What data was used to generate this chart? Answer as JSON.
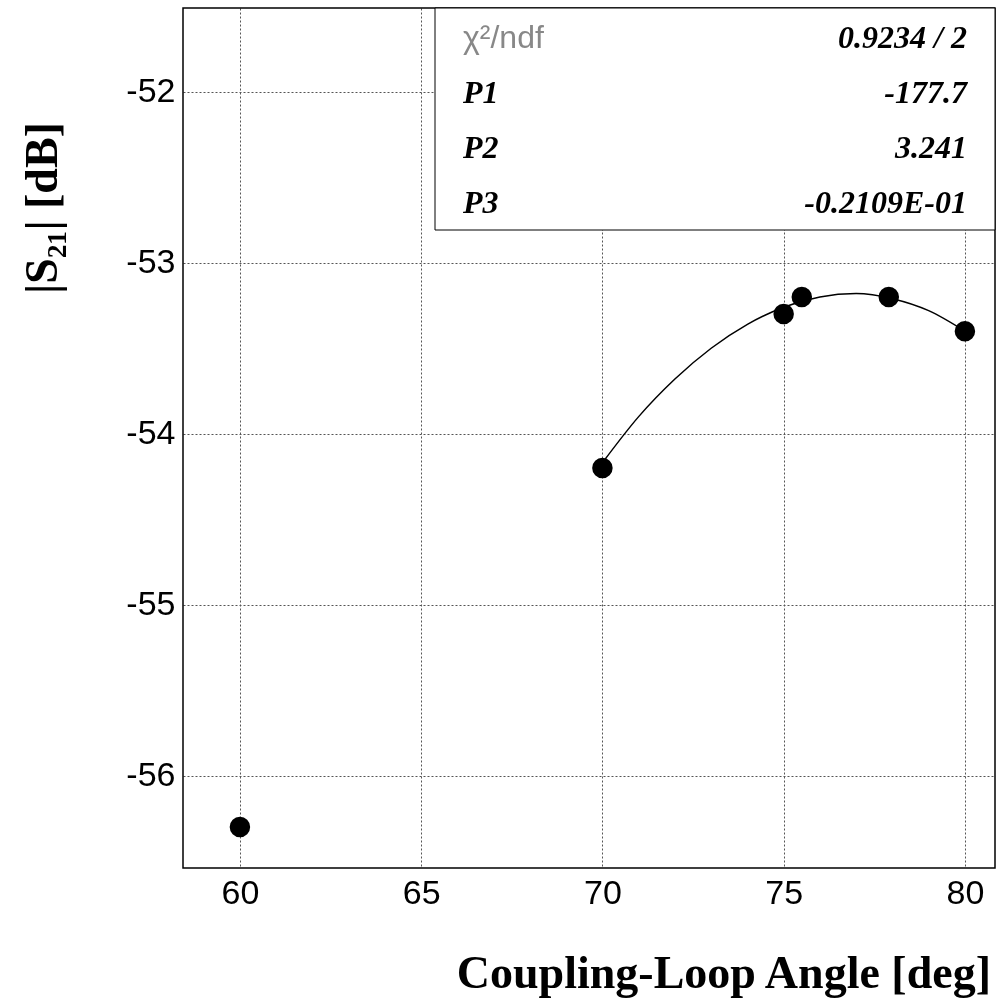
{
  "chart_data": {
    "type": "scatter",
    "xlabel": "Coupling-Loop Angle   [deg]",
    "ylabel": "|S₂₁|   [dB]",
    "xlim": [
      58.43,
      80.83
    ],
    "ylim": [
      -56.54,
      -51.51
    ],
    "xticks": [
      60,
      65,
      70,
      75,
      80
    ],
    "yticks": [
      -56,
      -55,
      -54,
      -53,
      -52
    ],
    "grid": true,
    "marker": "circle",
    "series": [
      {
        "color": "#000000",
        "x": [
          60,
          70,
          75,
          75.5,
          77.9,
          80
        ],
        "values": [
          -56.3,
          -54.2,
          -53.3,
          -53.2,
          -53.2,
          -53.4
        ]
      },
      {
        "type": "line",
        "color": "#000000",
        "marker": "none",
        "line_style": "solid",
        "x": [
          70,
          71,
          72,
          73,
          74,
          75,
          76,
          77,
          78,
          79,
          80
        ],
        "values": [
          -54.17,
          -53.9,
          -53.68,
          -53.5,
          -53.36,
          -53.26,
          -53.2,
          -53.18,
          -53.21,
          -53.28,
          -53.4
        ]
      }
    ],
    "annotations": [
      "χ²/ndf",
      "0.9234   /   2",
      "P1",
      "-177.7",
      "P2",
      "3.241",
      "P3",
      "-0.2109E-01"
    ]
  }
}
